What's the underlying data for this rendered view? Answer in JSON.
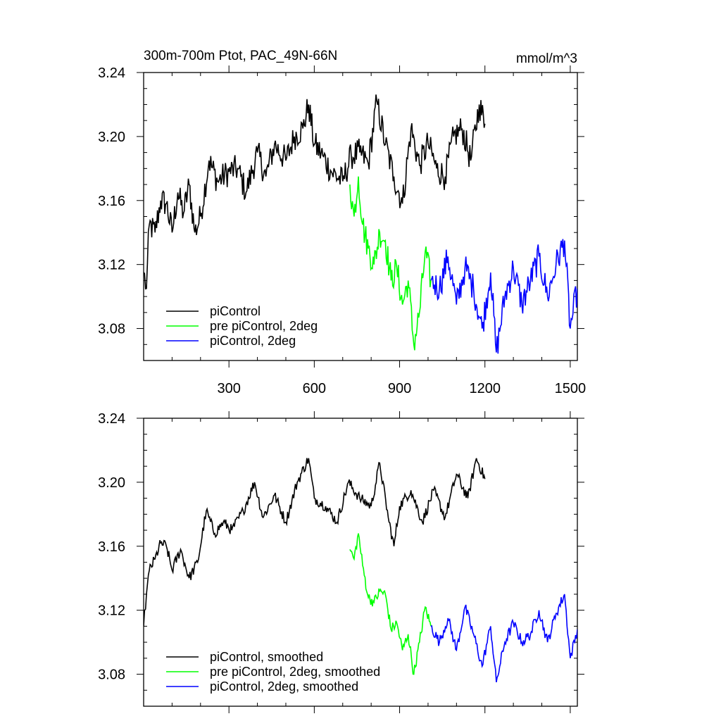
{
  "chart_data": [
    {
      "type": "line",
      "title": "300m-700m Ptot, PAC_49N-66N",
      "units": "mmol/m^3",
      "xlim": [
        0,
        1525
      ],
      "ylim": [
        3.06,
        3.24
      ],
      "xticks": [
        300,
        600,
        900,
        1200,
        1500
      ],
      "xticklabels": [
        "300",
        "600",
        "900",
        "1200",
        "1500"
      ],
      "yticks": [
        3.08,
        3.12,
        3.16,
        3.2,
        3.24
      ],
      "yticklabels": [
        "3.08",
        "3.12",
        "3.16",
        "3.20",
        "3.24"
      ],
      "legend_position": "bottom-left",
      "series": [
        {
          "name": "piControl",
          "color": "#000000",
          "x": [
            0,
            10,
            20,
            40,
            60,
            80,
            100,
            120,
            140,
            160,
            180,
            200,
            230,
            260,
            300,
            330,
            360,
            400,
            430,
            460,
            500,
            530,
            560,
            580,
            600,
            630,
            660,
            700,
            730,
            760,
            790,
            820,
            850,
            880,
            910,
            940,
            970,
            1000,
            1030,
            1060,
            1090,
            1120,
            1150,
            1180,
            1200
          ],
          "values": [
            3.115,
            3.105,
            3.145,
            3.14,
            3.16,
            3.158,
            3.14,
            3.165,
            3.152,
            3.17,
            3.14,
            3.15,
            3.185,
            3.172,
            3.178,
            3.18,
            3.165,
            3.19,
            3.175,
            3.195,
            3.185,
            3.2,
            3.205,
            3.22,
            3.195,
            3.188,
            3.178,
            3.172,
            3.188,
            3.19,
            3.183,
            3.222,
            3.195,
            3.175,
            3.158,
            3.205,
            3.182,
            3.196,
            3.18,
            3.175,
            3.2,
            3.205,
            3.185,
            3.22,
            3.208
          ]
        },
        {
          "name": "pre piControl, 2deg",
          "color": "#00ff00",
          "x": [
            725,
            740,
            755,
            770,
            790,
            810,
            830,
            850,
            870,
            890,
            910,
            930,
            950,
            970,
            990,
            1010
          ],
          "values": [
            3.17,
            3.15,
            3.175,
            3.145,
            3.13,
            3.12,
            3.14,
            3.135,
            3.11,
            3.118,
            3.095,
            3.11,
            3.07,
            3.09,
            3.128,
            3.11
          ]
        },
        {
          "name": "piControl, 2deg",
          "color": "#0000ff",
          "x": [
            1010,
            1040,
            1070,
            1100,
            1130,
            1160,
            1190,
            1220,
            1240,
            1270,
            1300,
            1330,
            1360,
            1390,
            1420,
            1450,
            1480,
            1500,
            1525
          ],
          "values": [
            3.11,
            3.105,
            3.125,
            3.095,
            3.118,
            3.105,
            3.08,
            3.115,
            3.065,
            3.1,
            3.118,
            3.095,
            3.11,
            3.125,
            3.1,
            3.12,
            3.135,
            3.08,
            3.105
          ]
        }
      ]
    },
    {
      "type": "line",
      "title": "",
      "units": "",
      "xlim": [
        0,
        1525
      ],
      "ylim": [
        3.06,
        3.24
      ],
      "xticks": [
        300,
        600,
        900,
        1200,
        1500
      ],
      "xticklabels": [],
      "yticks": [
        3.08,
        3.12,
        3.16,
        3.2,
        3.24
      ],
      "yticklabels": [
        "3.08",
        "3.12",
        "3.16",
        "3.20",
        "3.24"
      ],
      "legend_position": "bottom-left",
      "series": [
        {
          "name": "piControl, smoothed",
          "color": "#000000",
          "x": [
            0,
            10,
            20,
            40,
            60,
            80,
            100,
            130,
            160,
            190,
            220,
            250,
            280,
            310,
            350,
            390,
            420,
            460,
            500,
            540,
            580,
            600,
            640,
            680,
            720,
            760,
            800,
            830,
            860,
            880,
            900,
            940,
            980,
            1020,
            1060,
            1100,
            1140,
            1170,
            1200
          ],
          "values": [
            3.11,
            3.13,
            3.145,
            3.152,
            3.162,
            3.16,
            3.145,
            3.158,
            3.14,
            3.15,
            3.182,
            3.168,
            3.175,
            3.17,
            3.182,
            3.2,
            3.178,
            3.192,
            3.175,
            3.2,
            3.215,
            3.19,
            3.185,
            3.175,
            3.2,
            3.19,
            3.185,
            3.212,
            3.178,
            3.16,
            3.185,
            3.195,
            3.175,
            3.195,
            3.178,
            3.205,
            3.19,
            3.215,
            3.202
          ]
        },
        {
          "name": "pre piControl, 2deg, smoothed",
          "color": "#00ff00",
          "x": [
            725,
            740,
            755,
            770,
            790,
            810,
            830,
            850,
            870,
            890,
            910,
            930,
            950,
            970,
            990,
            1010
          ],
          "values": [
            3.158,
            3.152,
            3.168,
            3.148,
            3.128,
            3.125,
            3.132,
            3.13,
            3.108,
            3.112,
            3.095,
            3.105,
            3.08,
            3.1,
            3.122,
            3.11
          ]
        },
        {
          "name": "piControl, 2deg, smoothed",
          "color": "#0000ff",
          "x": [
            1010,
            1040,
            1070,
            1100,
            1130,
            1160,
            1190,
            1220,
            1240,
            1270,
            1300,
            1330,
            1360,
            1390,
            1420,
            1450,
            1480,
            1500,
            1525
          ],
          "values": [
            3.11,
            3.1,
            3.115,
            3.095,
            3.122,
            3.105,
            3.085,
            3.11,
            3.075,
            3.1,
            3.112,
            3.1,
            3.105,
            3.12,
            3.1,
            3.118,
            3.13,
            3.09,
            3.108
          ]
        }
      ]
    }
  ]
}
